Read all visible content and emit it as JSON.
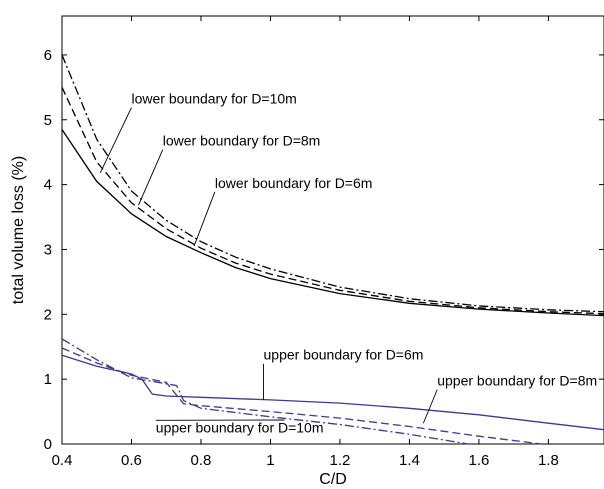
{
  "chart_data": {
    "type": "line",
    "xlabel": "C/D",
    "ylabel": "total volume loss (%)",
    "xlim": [
      0.4,
      1.96
    ],
    "ylim": [
      0,
      6.6
    ],
    "xticks": [
      0.4,
      0.6,
      0.8,
      1,
      1.2,
      1.4,
      1.6,
      1.8
    ],
    "xtick_labels": [
      "0.4",
      "0.6",
      "0.8",
      "1",
      "1.2",
      "1.4",
      "1.6",
      "1.8"
    ],
    "yticks": [
      0,
      1,
      2,
      3,
      4,
      5,
      6
    ],
    "ytick_labels": [
      "0",
      "1",
      "2",
      "3",
      "4",
      "5",
      "6"
    ],
    "grid": false,
    "legend": "none",
    "series": [
      {
        "color": "#000000",
        "dash": "solid",
        "x": [
          0.4,
          0.5,
          0.6,
          0.7,
          0.8,
          0.9,
          1.0,
          1.2,
          1.4,
          1.6,
          1.8,
          1.96
        ],
        "y": [
          4.85,
          4.05,
          3.55,
          3.2,
          2.95,
          2.72,
          2.55,
          2.32,
          2.17,
          2.08,
          2.02,
          1.98
        ]
      },
      {
        "color": "#000000",
        "dash": "dashed",
        "x": [
          0.4,
          0.5,
          0.6,
          0.7,
          0.8,
          0.9,
          1.0,
          1.2,
          1.4,
          1.6,
          1.8,
          1.96
        ],
        "y": [
          5.5,
          4.35,
          3.72,
          3.32,
          3.02,
          2.79,
          2.62,
          2.37,
          2.2,
          2.1,
          2.04,
          2.01
        ]
      },
      {
        "color": "#000000",
        "dash": "dashdot",
        "x": [
          0.4,
          0.5,
          0.6,
          0.7,
          0.8,
          0.9,
          1.0,
          1.2,
          1.4,
          1.6,
          1.8,
          1.96
        ],
        "y": [
          6.0,
          4.7,
          3.9,
          3.45,
          3.12,
          2.88,
          2.7,
          2.42,
          2.24,
          2.13,
          2.07,
          2.04
        ]
      },
      {
        "color": "#3b3b8f",
        "dash": "solid",
        "x": [
          0.4,
          0.5,
          0.6,
          0.63,
          0.66,
          0.7,
          0.8,
          1.0,
          1.2,
          1.4,
          1.6,
          1.8,
          1.96
        ],
        "y": [
          1.37,
          1.2,
          1.08,
          1.0,
          0.77,
          0.74,
          0.72,
          0.68,
          0.63,
          0.55,
          0.45,
          0.32,
          0.22
        ]
      },
      {
        "color": "#3b3b8f",
        "dash": "dashed",
        "x": [
          0.4,
          0.5,
          0.6,
          0.7,
          0.75,
          0.8,
          1.0,
          1.2,
          1.4,
          1.6,
          1.78
        ],
        "y": [
          1.48,
          1.25,
          1.06,
          0.95,
          0.62,
          0.59,
          0.5,
          0.4,
          0.27,
          0.12,
          0.0
        ]
      },
      {
        "color": "#3b3b8f",
        "dash": "dashdot",
        "x": [
          0.4,
          0.5,
          0.6,
          0.7,
          0.73,
          0.75,
          0.8,
          1.0,
          1.2,
          1.4,
          1.57
        ],
        "y": [
          1.62,
          1.3,
          1.02,
          0.93,
          0.9,
          0.67,
          0.55,
          0.42,
          0.3,
          0.15,
          0.0
        ]
      }
    ],
    "annotations": [
      {
        "text": "lower boundary for D=10m",
        "x": 0.6,
        "y": 5.25,
        "point_x": 0.51,
        "point_y": 4.18
      },
      {
        "text": "lower  boundary for D=8m",
        "x": 0.69,
        "y": 4.6,
        "point_x": 0.62,
        "point_y": 3.68
      },
      {
        "text": "lower  boundary for D=6m",
        "x": 0.84,
        "y": 3.95,
        "point_x": 0.78,
        "point_y": 3.05
      },
      {
        "text": "upper boundary for D=6m",
        "x": 0.98,
        "y": 1.3,
        "point_x": 0.98,
        "point_y": 0.68
      },
      {
        "text": "upper boundary for D=8m",
        "x": 1.48,
        "y": 0.9,
        "point_x": 1.44,
        "point_y": 0.32
      },
      {
        "text": "upper boundary for D=10m",
        "x": 0.67,
        "y": 0.18,
        "point_x": 1.04,
        "point_y": 0.37
      }
    ]
  }
}
